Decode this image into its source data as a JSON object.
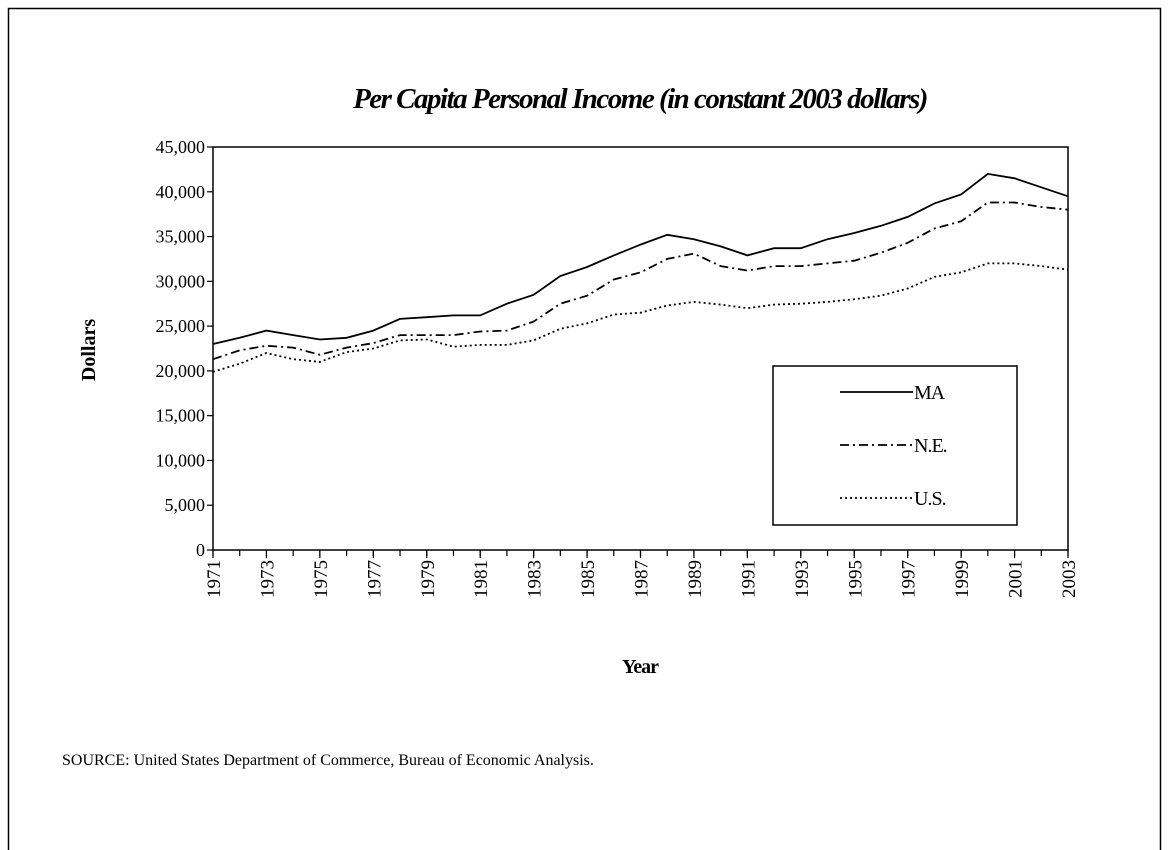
{
  "chart_data": {
    "type": "line",
    "title": "Per Capita Personal Income (in constant 2003 dollars)",
    "x_label": "Year",
    "y_label": "Dollars",
    "x": [
      1971,
      1972,
      1973,
      1974,
      1975,
      1976,
      1977,
      1978,
      1979,
      1980,
      1981,
      1982,
      1983,
      1984,
      1985,
      1986,
      1987,
      1988,
      1989,
      1990,
      1991,
      1992,
      1993,
      1994,
      1995,
      1996,
      1997,
      1998,
      1999,
      2000,
      2001,
      2002,
      2003
    ],
    "xlim": [
      1971,
      2003
    ],
    "xticks": [
      1971,
      1973,
      1975,
      1977,
      1979,
      1981,
      1983,
      1985,
      1987,
      1989,
      1991,
      1993,
      1995,
      1997,
      1999,
      2001,
      2003
    ],
    "ylim": [
      0,
      45000
    ],
    "yticks": [
      0,
      {
        "value": 5000,
        "label": "5,000"
      },
      {
        "value": 10000,
        "label": "10,000"
      },
      {
        "value": 15000,
        "label": "15,000"
      },
      {
        "value": 20000,
        "label": "20,000"
      },
      {
        "value": 25000,
        "label": "25,000"
      },
      {
        "value": 30000,
        "label": "30,000"
      },
      {
        "value": 35000,
        "label": "35,000"
      },
      {
        "value": 40000,
        "label": "40,000"
      },
      {
        "value": 45000,
        "label": "45,000"
      }
    ],
    "legend": "lower right",
    "series": [
      {
        "name": "MA",
        "color": "#000000",
        "dash": "solid",
        "values": [
          23000,
          23700,
          24500,
          24000,
          23500,
          23700,
          24500,
          25800,
          26000,
          26200,
          26200,
          27500,
          28500,
          30600,
          31600,
          32900,
          34100,
          35200,
          34700,
          33900,
          32900,
          33700,
          33700,
          34700,
          35400,
          36200,
          37200,
          38700,
          39700,
          42000,
          41500,
          40500,
          39500
        ]
      },
      {
        "name": "N.E.",
        "color": "#000000",
        "dash": "dashdot",
        "values": [
          21300,
          22300,
          22800,
          22600,
          21800,
          22600,
          23100,
          24000,
          24000,
          24000,
          24400,
          24500,
          25500,
          27500,
          28400,
          30200,
          31000,
          32500,
          33100,
          31700,
          31200,
          31700,
          31700,
          32000,
          32300,
          33200,
          34300,
          35900,
          36700,
          38800,
          38800,
          38300,
          38000
        ]
      },
      {
        "name": "U.S.",
        "color": "#000000",
        "dash": "dotted",
        "values": [
          19900,
          20800,
          22000,
          21300,
          21000,
          22100,
          22500,
          23400,
          23500,
          22700,
          22900,
          22900,
          23400,
          24700,
          25300,
          26300,
          26500,
          27300,
          27700,
          27400,
          27000,
          27400,
          27500,
          27700,
          28000,
          28400,
          29200,
          30500,
          31000,
          32000,
          32000,
          31700,
          31300
        ]
      }
    ]
  },
  "footer": {
    "source": "SOURCE:  United States Department of Commerce, Bureau of Economic Analysis."
  }
}
